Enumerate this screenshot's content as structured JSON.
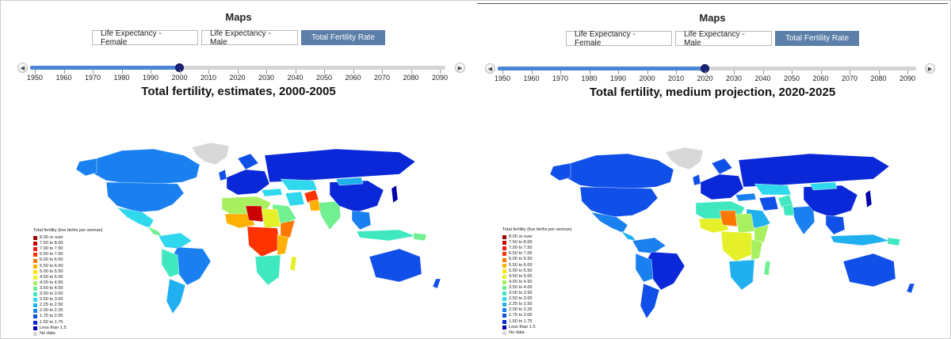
{
  "panels": [
    {
      "app_title": "Maps",
      "tabs": [
        "Life Expectancy - Female",
        "Life Expectancy - Male",
        "Total Fertility Rate"
      ],
      "active_tab": "Total Fertility Rate",
      "slider": {
        "prev_icon": "left-arrow-icon",
        "next_icon": "right-arrow-icon",
        "years": [
          "1950",
          "1960",
          "1970",
          "1980",
          "1990",
          "2000",
          "2010",
          "2020",
          "2030",
          "2040",
          "2050",
          "2060",
          "2070",
          "2080",
          "2090"
        ],
        "selected_year": "2000"
      },
      "map_title": "Total fertility, estimates, 2000-2005",
      "legend_title": "Total fertility (live births per woman)",
      "legend": [
        {
          "label": "8.00 or over",
          "color": "#990000"
        },
        {
          "label": "7.50 to 8.00",
          "color": "#cc0000"
        },
        {
          "label": "7.00 to 7.50",
          "color": "#e82010"
        },
        {
          "label": "6.50 to 7.00",
          "color": "#ff3300"
        },
        {
          "label": "6.00 to 6.50",
          "color": "#ff7700"
        },
        {
          "label": "5.50 to 6.00",
          "color": "#ffb000"
        },
        {
          "label": "5.00 to 5.50",
          "color": "#ffe000"
        },
        {
          "label": "4.50 to 5.00",
          "color": "#e6f028"
        },
        {
          "label": "4.00 to 4.50",
          "color": "#a8f060"
        },
        {
          "label": "3.50 to 4.00",
          "color": "#70f090"
        },
        {
          "label": "3.00 to 3.50",
          "color": "#40e8c0"
        },
        {
          "label": "2.50 to 3.00",
          "color": "#30d8ee"
        },
        {
          "label": "2.25 to 2.50",
          "color": "#20b0f0"
        },
        {
          "label": "2.00 to 2.25",
          "color": "#1a80f0"
        },
        {
          "label": "1.75 to 2.00",
          "color": "#1050e8"
        },
        {
          "label": "1.50 to 1.75",
          "color": "#0a28d8"
        },
        {
          "label": "Less than 1.5",
          "color": "#0000a8"
        },
        {
          "label": "No data",
          "color": "#d8d8d8"
        }
      ]
    },
    {
      "app_title": "Maps",
      "tabs": [
        "Life Expectancy - Female",
        "Life Expectancy - Male",
        "Total Fertility Rate"
      ],
      "active_tab": "Total Fertility Rate",
      "slider": {
        "prev_icon": "left-arrow-icon",
        "next_icon": "right-arrow-icon",
        "years": [
          "1950",
          "1960",
          "1970",
          "1980",
          "1990",
          "2000",
          "2010",
          "2020",
          "2030",
          "2040",
          "2050",
          "2060",
          "2070",
          "2080",
          "2090"
        ],
        "selected_year": "2020"
      },
      "map_title": "Total fertility, medium projection, 2020-2025",
      "legend_title": "Total fertility (live births per woman)",
      "legend": [
        {
          "label": "8.00 or over",
          "color": "#990000"
        },
        {
          "label": "7.50 to 8.00",
          "color": "#cc0000"
        },
        {
          "label": "7.00 to 7.50",
          "color": "#e82010"
        },
        {
          "label": "6.50 to 7.00",
          "color": "#ff3300"
        },
        {
          "label": "6.00 to 6.50",
          "color": "#ff7700"
        },
        {
          "label": "5.50 to 6.00",
          "color": "#ffb000"
        },
        {
          "label": "5.00 to 5.50",
          "color": "#ffe000"
        },
        {
          "label": "4.50 to 5.00",
          "color": "#e6f028"
        },
        {
          "label": "4.00 to 4.50",
          "color": "#a8f060"
        },
        {
          "label": "3.50 to 4.00",
          "color": "#70f090"
        },
        {
          "label": "3.00 to 3.50",
          "color": "#40e8c0"
        },
        {
          "label": "2.50 to 3.00",
          "color": "#30d8ee"
        },
        {
          "label": "2.25 to 2.50",
          "color": "#20b0f0"
        },
        {
          "label": "2.00 to 2.25",
          "color": "#1a80f0"
        },
        {
          "label": "1.75 to 2.00",
          "color": "#1050e8"
        },
        {
          "label": "1.50 to 1.75",
          "color": "#0a28d8"
        },
        {
          "label": "Less than 1.5",
          "color": "#0000a8"
        },
        {
          "label": "No data",
          "color": "#d8d8d8"
        }
      ]
    }
  ]
}
